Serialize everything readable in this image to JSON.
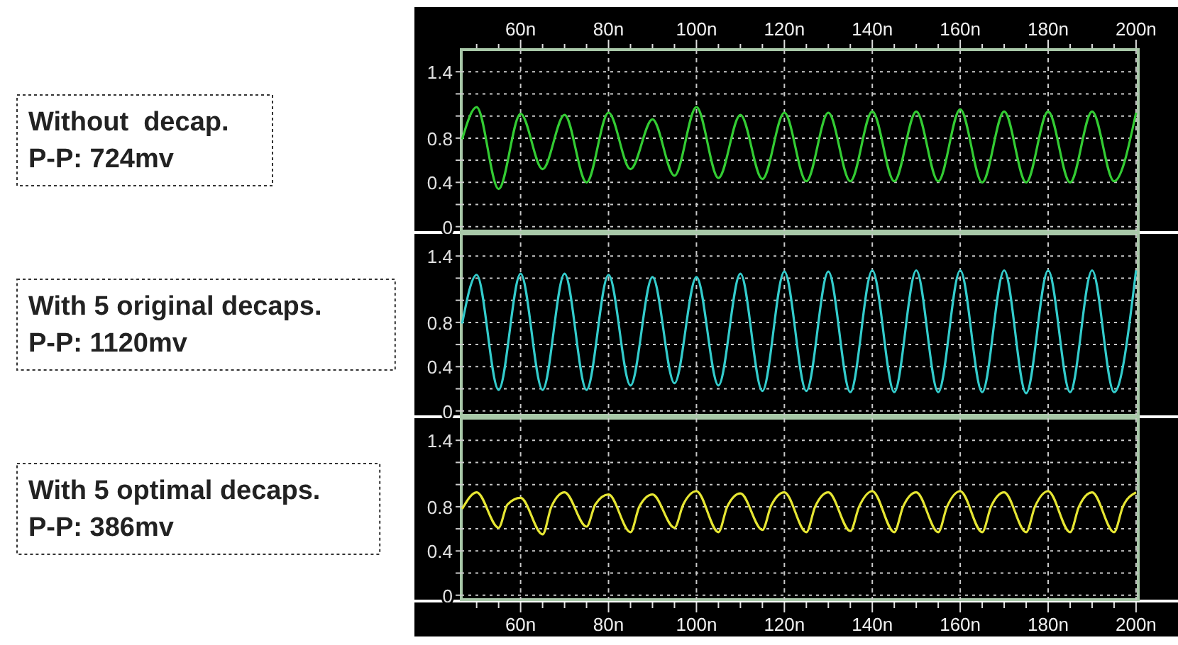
{
  "chart_data": [
    {
      "type": "line",
      "annotations": [
        "Without  decap.",
        "P-P: 724mv"
      ],
      "x": [
        46.7,
        50,
        55,
        60,
        65,
        70,
        75,
        80,
        85,
        90,
        95,
        100,
        105,
        110,
        115,
        120,
        125,
        130,
        135,
        140,
        145,
        150,
        155,
        160,
        165,
        170,
        175,
        180,
        185,
        190,
        195,
        200
      ],
      "series": [
        {
          "color": "#33cc33",
          "values": [
            0.79,
            1.08,
            0.34,
            1.02,
            0.52,
            1.01,
            0.4,
            1.03,
            0.52,
            0.97,
            0.46,
            1.08,
            0.44,
            1.01,
            0.43,
            1.03,
            0.41,
            1.03,
            0.41,
            1.04,
            0.41,
            1.04,
            0.41,
            1.06,
            0.4,
            1.04,
            0.4,
            1.04,
            0.4,
            1.04,
            0.41,
            1.03
          ]
        }
      ],
      "xlim": [
        46.5,
        200.5
      ],
      "xticks": [
        60,
        80,
        100,
        120,
        140,
        160,
        180,
        200
      ],
      "x2lim": [
        46.5,
        200.5
      ],
      "x2ticks": [
        {
          "value": 60,
          "label": "60n"
        },
        {
          "value": 80,
          "label": "80n"
        },
        {
          "value": 100,
          "label": "100n"
        },
        {
          "value": 120,
          "label": "120n"
        },
        {
          "value": 140,
          "label": "140n"
        },
        {
          "value": 160,
          "label": "160n"
        },
        {
          "value": 180,
          "label": "180n"
        },
        {
          "value": 200,
          "label": "200n"
        }
      ],
      "ylim": [
        -0.04,
        1.6
      ],
      "yticks": [
        0,
        {
          "value": 0.2,
          "label": null
        },
        0.4,
        {
          "value": 0.6,
          "label": null
        },
        0.8,
        {
          "value": 1.0,
          "label": null
        },
        {
          "value": 1.2,
          "label": null
        },
        1.4
      ],
      "tick_labels": "y",
      "grid": true
    },
    {
      "type": "line",
      "annotations": [
        "With 5 original decaps.",
        "P-P: 1120mv"
      ],
      "x": [
        46.7,
        50,
        55,
        60,
        65,
        70,
        75,
        80,
        85,
        90,
        95,
        100,
        105,
        110,
        115,
        120,
        125,
        130,
        135,
        140,
        145,
        150,
        155,
        160,
        165,
        170,
        175,
        180,
        185,
        190,
        195,
        200
      ],
      "series": [
        {
          "color": "#33cccc",
          "values": [
            0.79,
            1.23,
            0.19,
            1.24,
            0.19,
            1.24,
            0.19,
            1.23,
            0.23,
            1.21,
            0.25,
            1.21,
            0.23,
            1.24,
            0.18,
            1.26,
            0.18,
            1.26,
            0.17,
            1.27,
            0.17,
            1.27,
            0.17,
            1.27,
            0.17,
            1.27,
            0.16,
            1.27,
            0.17,
            1.27,
            0.17,
            1.27
          ]
        }
      ],
      "xlim": [
        46.5,
        200.5
      ],
      "xticks": [
        60,
        80,
        100,
        120,
        140,
        160,
        180,
        200
      ],
      "ylim": [
        -0.04,
        1.6
      ],
      "yticks": [
        0,
        {
          "value": 0.2,
          "label": null
        },
        0.4,
        {
          "value": 0.6,
          "label": null
        },
        0.8,
        {
          "value": 1.0,
          "label": null
        },
        {
          "value": 1.2,
          "label": null
        },
        1.4
      ],
      "tick_labels": "y",
      "grid": true
    },
    {
      "type": "line",
      "annotations": [
        "With 5 optimal decaps.",
        "P-P: 386mv"
      ],
      "x": [
        46.7,
        50,
        55,
        57,
        60,
        65,
        67,
        70,
        75,
        77,
        80,
        85,
        87,
        90,
        95,
        97,
        100,
        105,
        107,
        110,
        115,
        117,
        120,
        125,
        127,
        130,
        135,
        137,
        140,
        145,
        147,
        150,
        155,
        157,
        160,
        165,
        167,
        170,
        175,
        177,
        180,
        185,
        187,
        190,
        195,
        197,
        200
      ],
      "series": [
        {
          "color": "#e6e633",
          "values": [
            0.78,
            0.93,
            0.61,
            0.82,
            0.88,
            0.55,
            0.8,
            0.93,
            0.62,
            0.82,
            0.91,
            0.57,
            0.8,
            0.91,
            0.61,
            0.82,
            0.94,
            0.57,
            0.8,
            0.92,
            0.59,
            0.81,
            0.93,
            0.57,
            0.8,
            0.93,
            0.58,
            0.8,
            0.94,
            0.57,
            0.8,
            0.93,
            0.57,
            0.8,
            0.94,
            0.57,
            0.8,
            0.93,
            0.57,
            0.8,
            0.94,
            0.57,
            0.8,
            0.93,
            0.57,
            0.8,
            0.93
          ]
        }
      ],
      "xlim": [
        46.5,
        200.5
      ],
      "xticks": [
        {
          "value": 60,
          "label": "60n"
        },
        {
          "value": 80,
          "label": "80n"
        },
        {
          "value": 100,
          "label": "100n"
        },
        {
          "value": 120,
          "label": "120n"
        },
        {
          "value": 140,
          "label": "140n"
        },
        {
          "value": 160,
          "label": "160n"
        },
        {
          "value": 180,
          "label": "180n"
        },
        {
          "value": 200,
          "label": "200n"
        }
      ],
      "ylim": [
        -0.04,
        1.6
      ],
      "yticks": [
        0,
        {
          "value": 0.2,
          "label": null
        },
        0.4,
        {
          "value": 0.6,
          "label": null
        },
        0.8,
        {
          "value": 1.0,
          "label": null
        },
        {
          "value": 1.2,
          "label": null
        },
        1.4
      ],
      "grid": true
    }
  ]
}
